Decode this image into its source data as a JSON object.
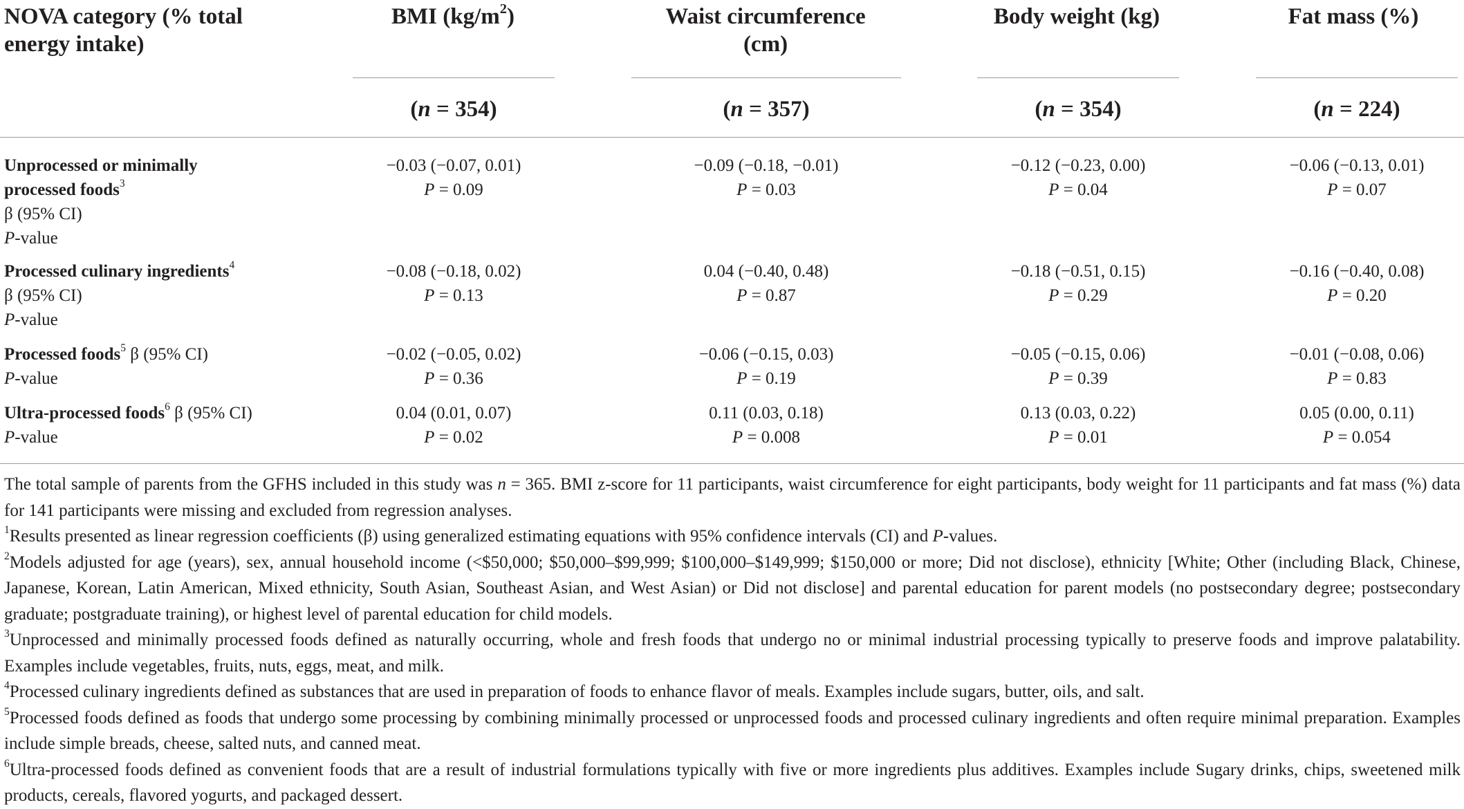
{
  "table": {
    "header": {
      "category_line1": "NOVA category (% total",
      "category_line2": "energy intake)",
      "columns": [
        {
          "label": "BMI (kg/m",
          "sup": "2",
          "label_end": ")",
          "n_prefix": "(",
          "n_var": "n",
          "n_rest": " = 354)"
        },
        {
          "label": "Waist circumference",
          "label_line2": "(cm)",
          "n_prefix": "(",
          "n_var": "n",
          "n_rest": " = 357)"
        },
        {
          "label": "Body weight (kg)",
          "n_prefix": "(",
          "n_var": "n",
          "n_rest": " = 354)"
        },
        {
          "label": "Fat mass (%)",
          "n_prefix": "(",
          "n_var": "n",
          "n_rest": " = 224)"
        }
      ]
    },
    "rows": [
      {
        "label_bold_line1": "Unprocessed or minimally",
        "label_bold_line2": "processed foods",
        "sup": "3",
        "beta_label": "β (95% CI)",
        "p_label_var": "P",
        "p_label_rest": "-value",
        "values": [
          {
            "beta": "−0.03 (−0.07, 0.01)",
            "p_var": "P",
            "p_rest": " = 0.09"
          },
          {
            "beta": "−0.09 (−0.18, −0.01)",
            "p_var": "P",
            "p_rest": " = 0.03"
          },
          {
            "beta": "−0.12 (−0.23, 0.00)",
            "p_var": "P",
            "p_rest": " = 0.04"
          },
          {
            "beta": "−0.06 (−0.13, 0.01)",
            "p_var": "P",
            "p_rest": " = 0.07"
          }
        ]
      },
      {
        "label_bold_line1": "Processed culinary ingredients",
        "sup": "4",
        "beta_label": "β (95% CI)",
        "p_label_var": "P",
        "p_label_rest": "-value",
        "values": [
          {
            "beta": "−0.08 (−0.18, 0.02)",
            "p_var": "P",
            "p_rest": " = 0.13"
          },
          {
            "beta": "0.04 (−0.40, 0.48)",
            "p_var": "P",
            "p_rest": " = 0.87"
          },
          {
            "beta": "−0.18 (−0.51, 0.15)",
            "p_var": "P",
            "p_rest": " = 0.29"
          },
          {
            "beta": "−0.16 (−0.40, 0.08)",
            "p_var": "P",
            "p_rest": " = 0.20"
          }
        ]
      },
      {
        "label_bold_line1": "Processed foods",
        "sup": "5",
        "beta_label": " β (95% CI)",
        "p_label_var": "P",
        "p_label_rest": "-value",
        "values": [
          {
            "beta": "−0.02 (−0.05, 0.02)",
            "p_var": "P",
            "p_rest": " = 0.36"
          },
          {
            "beta": "−0.06 (−0.15, 0.03)",
            "p_var": "P",
            "p_rest": " = 0.19"
          },
          {
            "beta": "−0.05 (−0.15, 0.06)",
            "p_var": "P",
            "p_rest": " = 0.39"
          },
          {
            "beta": "−0.01 (−0.08, 0.06)",
            "p_var": "P",
            "p_rest": " = 0.83"
          }
        ]
      },
      {
        "label_bold_line1": "Ultra-processed foods",
        "sup": "6",
        "beta_label": " β (95% CI)",
        "p_label_var": "P",
        "p_label_rest": "-value",
        "values": [
          {
            "beta": "0.04 (0.01, 0.07)",
            "p_var": "P",
            "p_rest": " = 0.02"
          },
          {
            "beta": "0.11 (0.03, 0.18)",
            "p_var": "P",
            "p_rest": " = 0.008"
          },
          {
            "beta": "0.13 (0.03, 0.22)",
            "p_var": "P",
            "p_rest": " = 0.01"
          },
          {
            "beta": "0.05 (0.00, 0.11)",
            "p_var": "P",
            "p_rest": " = 0.054"
          }
        ]
      }
    ]
  },
  "notes": {
    "intro_a": "The total sample of parents from the GFHS included in this study was ",
    "intro_var": "n",
    "intro_b": " = 365. BMI z-score for 11 participants, waist circumference for eight participants, body weight for 11 participants and fat mass (%) data for 141 participants were missing and excluded from regression analyses.",
    "n1_sup": "1",
    "n1_a": "Results presented as linear regression coefficients (β) using generalized estimating equations with 95% confidence intervals (CI) and ",
    "n1_var": "P",
    "n1_b": "-values.",
    "n2_sup": "2",
    "n2": "Models adjusted for age (years), sex, annual household income (<$50,000; $50,000–$99,999; $100,000–$149,999; $150,000 or more; Did not disclose), ethnicity [White; Other (including Black, Chinese, Japanese, Korean, Latin American, Mixed ethnicity, South Asian, Southeast Asian, and West Asian) or Did not disclose] and parental education for parent models (no postsecondary degree; postsecondary graduate; postgraduate training), or highest level of parental education for child models.",
    "n3_sup": "3",
    "n3": "Unprocessed and minimally processed foods defined as naturally occurring, whole and fresh foods that undergo no or minimal industrial processing typically to preserve foods and improve palatability. Examples include vegetables, fruits, nuts, eggs, meat, and milk.",
    "n4_sup": "4",
    "n4": "Processed culinary ingredients defined as substances that are used in preparation of foods to enhance flavor of meals. Examples include sugars, butter, oils, and salt.",
    "n5_sup": "5",
    "n5": "Processed foods defined as foods that undergo some processing by combining minimally processed or unprocessed foods and processed culinary ingredients and often require minimal preparation. Examples include simple breads, cheese, salted nuts, and canned meat.",
    "n6_sup": "6",
    "n6": "Ultra-processed foods defined as convenient foods that are a result of industrial formulations typically with five or more ingredients plus additives. Examples include Sugary drinks, chips, sweetened milk products, cereals, flavored yogurts, and packaged dessert."
  }
}
